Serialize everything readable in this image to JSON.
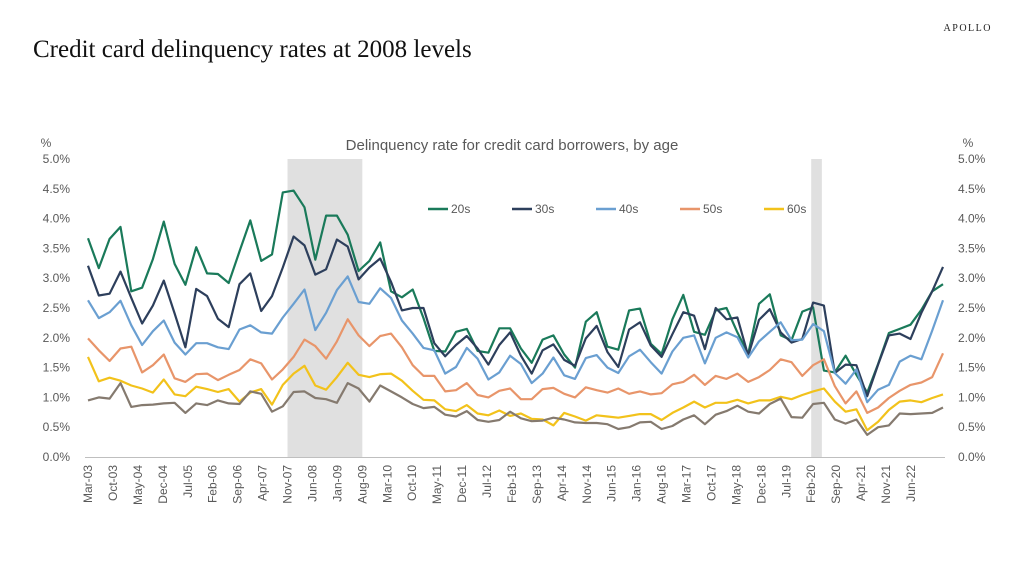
{
  "brand": "APOLLO",
  "title": "Credit card delinquency rates at 2008 levels",
  "chart_data": {
    "type": "line",
    "subtitle": "Delinquency rate for credit card borrowers, by age",
    "y_unit_left": "%",
    "y_unit_right": "%",
    "ylim": [
      0,
      5
    ],
    "y_ticks": [
      "0.0%",
      "0.5%",
      "1.0%",
      "1.5%",
      "2.0%",
      "2.5%",
      "3.0%",
      "3.5%",
      "4.0%",
      "4.5%",
      "5.0%"
    ],
    "x_tick_labels": [
      "Mar-03",
      "Oct-03",
      "May-04",
      "Dec-04",
      "Jul-05",
      "Feb-06",
      "Sep-06",
      "Apr-07",
      "Nov-07",
      "Jun-08",
      "Jan-09",
      "Aug-09",
      "Mar-10",
      "Oct-10",
      "May-11",
      "Dec-11",
      "Jul-12",
      "Feb-13",
      "Sep-13",
      "Apr-14",
      "Nov-14",
      "Jun-15",
      "Jan-16",
      "Aug-16",
      "Mar-17",
      "Oct-17",
      "May-18",
      "Dec-18",
      "Jul-19",
      "Feb-20",
      "Sep-20",
      "Apr-21",
      "Nov-21",
      "Jun-22"
    ],
    "x_start": "2003-03",
    "x_end": "2023-03",
    "frequency": "quarterly",
    "shaded_regions": [
      {
        "from": "2007-11",
        "to": "2009-08"
      },
      {
        "from": "2020-02",
        "to": "2020-05"
      }
    ],
    "legend_position": "top-center",
    "grid": false,
    "series": [
      {
        "name": "20s",
        "color": "#1a7a5a",
        "values": [
          3.67,
          3.17,
          3.66,
          3.86,
          2.78,
          2.84,
          3.32,
          3.95,
          3.24,
          2.89,
          3.52,
          3.08,
          3.07,
          2.92,
          3.45,
          3.97,
          3.29,
          3.4,
          4.44,
          4.47,
          4.19,
          3.31,
          4.05,
          4.05,
          3.73,
          3.12,
          3.29,
          3.6,
          2.78,
          2.68,
          2.81,
          2.33,
          1.78,
          1.77,
          2.1,
          2.15,
          1.78,
          1.75,
          2.16,
          2.16,
          1.82,
          1.58,
          1.97,
          2.04,
          1.72,
          1.5,
          2.27,
          2.43,
          1.85,
          1.8,
          2.46,
          2.49,
          1.9,
          1.73,
          2.31,
          2.72,
          2.1,
          2.05,
          2.46,
          2.5,
          2.09,
          1.73,
          2.57,
          2.73,
          2.04,
          1.96,
          2.44,
          2.51,
          1.45,
          1.42,
          1.7,
          1.38,
          1.08,
          1.56,
          2.08,
          2.15,
          2.22,
          2.47,
          2.78,
          2.9
        ]
      },
      {
        "name": "30s",
        "color": "#2d3f5c",
        "values": [
          3.21,
          2.71,
          2.74,
          3.11,
          2.67,
          2.24,
          2.54,
          2.96,
          2.41,
          1.84,
          2.82,
          2.7,
          2.32,
          2.18,
          2.9,
          3.08,
          2.45,
          2.7,
          3.18,
          3.7,
          3.55,
          3.06,
          3.15,
          3.65,
          3.53,
          2.98,
          3.18,
          3.33,
          2.94,
          2.46,
          2.5,
          2.5,
          1.91,
          1.69,
          1.88,
          2.03,
          1.82,
          1.55,
          1.88,
          2.09,
          1.7,
          1.4,
          1.79,
          1.89,
          1.63,
          1.53,
          1.99,
          2.2,
          1.76,
          1.51,
          2.14,
          2.26,
          1.87,
          1.68,
          2.06,
          2.43,
          2.37,
          1.81,
          2.5,
          2.31,
          2.34,
          1.7,
          2.3,
          2.48,
          2.09,
          1.92,
          1.98,
          2.59,
          2.54,
          1.41,
          1.55,
          1.54,
          1.02,
          1.55,
          2.04,
          2.07,
          1.98,
          2.42,
          2.78,
          3.19
        ]
      },
      {
        "name": "40s",
        "color": "#6a9fd1",
        "values": [
          2.63,
          2.33,
          2.43,
          2.62,
          2.21,
          1.88,
          2.11,
          2.29,
          1.92,
          1.72,
          1.91,
          1.91,
          1.84,
          1.81,
          2.14,
          2.21,
          2.09,
          2.07,
          2.34,
          2.57,
          2.81,
          2.13,
          2.42,
          2.8,
          3.03,
          2.6,
          2.57,
          2.83,
          2.67,
          2.29,
          2.07,
          1.83,
          1.79,
          1.4,
          1.51,
          1.83,
          1.65,
          1.3,
          1.42,
          1.7,
          1.56,
          1.24,
          1.4,
          1.67,
          1.37,
          1.31,
          1.66,
          1.71,
          1.5,
          1.41,
          1.69,
          1.8,
          1.59,
          1.4,
          1.77,
          2.0,
          2.04,
          1.57,
          2.0,
          2.09,
          2.01,
          1.67,
          1.94,
          2.1,
          2.26,
          1.96,
          1.97,
          2.23,
          2.11,
          1.41,
          1.23,
          1.47,
          0.92,
          1.13,
          1.21,
          1.6,
          1.7,
          1.64,
          2.12,
          2.63
        ]
      },
      {
        "name": "50s",
        "color": "#e8956a",
        "values": [
          1.99,
          1.79,
          1.61,
          1.82,
          1.85,
          1.42,
          1.54,
          1.72,
          1.32,
          1.26,
          1.39,
          1.4,
          1.29,
          1.38,
          1.46,
          1.64,
          1.57,
          1.3,
          1.47,
          1.68,
          1.97,
          1.86,
          1.65,
          1.94,
          2.31,
          2.04,
          1.86,
          2.03,
          2.07,
          1.84,
          1.54,
          1.36,
          1.36,
          1.1,
          1.12,
          1.24,
          1.04,
          1.0,
          1.11,
          1.15,
          0.97,
          0.97,
          1.14,
          1.16,
          1.06,
          1.0,
          1.17,
          1.12,
          1.08,
          1.15,
          1.06,
          1.1,
          1.05,
          1.07,
          1.22,
          1.26,
          1.38,
          1.21,
          1.36,
          1.31,
          1.4,
          1.26,
          1.34,
          1.46,
          1.64,
          1.59,
          1.36,
          1.54,
          1.64,
          1.19,
          0.9,
          1.1,
          0.74,
          0.83,
          0.99,
          1.11,
          1.21,
          1.25,
          1.34,
          1.74
        ]
      },
      {
        "name": "60s",
        "color": "#f2c21b",
        "values": [
          1.68,
          1.27,
          1.33,
          1.28,
          1.2,
          1.15,
          1.08,
          1.3,
          1.05,
          1.02,
          1.18,
          1.14,
          1.09,
          1.14,
          0.93,
          1.08,
          1.14,
          0.88,
          1.21,
          1.4,
          1.53,
          1.2,
          1.13,
          1.34,
          1.58,
          1.38,
          1.34,
          1.39,
          1.4,
          1.28,
          1.11,
          0.96,
          0.95,
          0.8,
          0.77,
          0.87,
          0.73,
          0.7,
          0.78,
          0.69,
          0.73,
          0.64,
          0.63,
          0.53,
          0.74,
          0.68,
          0.61,
          0.7,
          0.68,
          0.66,
          0.69,
          0.72,
          0.72,
          0.62,
          0.74,
          0.83,
          0.93,
          0.83,
          0.91,
          0.91,
          0.96,
          0.9,
          0.95,
          0.95,
          1.01,
          0.97,
          1.04,
          1.1,
          1.15,
          0.93,
          0.76,
          0.8,
          0.45,
          0.59,
          0.79,
          0.93,
          0.95,
          0.92,
          0.99,
          1.05
        ]
      },
      {
        "name": "",
        "color": "#857a6f",
        "values": [
          0.95,
          1.0,
          0.98,
          1.24,
          0.84,
          0.87,
          0.88,
          0.9,
          0.91,
          0.74,
          0.9,
          0.87,
          0.95,
          0.9,
          0.89,
          1.1,
          1.06,
          0.76,
          0.85,
          1.09,
          1.1,
          0.99,
          0.97,
          0.91,
          1.24,
          1.15,
          0.93,
          1.2,
          1.1,
          1.0,
          0.89,
          0.82,
          0.84,
          0.71,
          0.68,
          0.77,
          0.62,
          0.59,
          0.62,
          0.76,
          0.65,
          0.6,
          0.61,
          0.66,
          0.63,
          0.58,
          0.57,
          0.57,
          0.55,
          0.47,
          0.5,
          0.58,
          0.59,
          0.47,
          0.52,
          0.63,
          0.7,
          0.55,
          0.71,
          0.77,
          0.86,
          0.76,
          0.73,
          0.89,
          0.98,
          0.67,
          0.66,
          0.89,
          0.91,
          0.63,
          0.56,
          0.63,
          0.37,
          0.5,
          0.53,
          0.73,
          0.72,
          0.73,
          0.74,
          0.83
        ]
      }
    ]
  }
}
